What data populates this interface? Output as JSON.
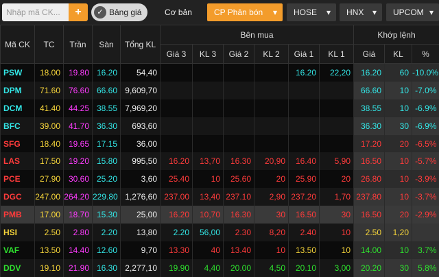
{
  "toolbar": {
    "search_placeholder": "Nhập mã CK...",
    "add_button": "+",
    "toggle": "Bảng giá",
    "basic": "Cơ bản",
    "group": "CP Phân bón",
    "exchanges": [
      "HOSE",
      "HNX",
      "UPCOM"
    ]
  },
  "table": {
    "header_top": [
      "Mã CK",
      "TC",
      "Trần",
      "Sàn",
      "Tổng KL"
    ],
    "group_buy": "Bên mua",
    "group_match": "Khớp lệnh",
    "sub_headers": [
      "Giá 3",
      "KL 3",
      "Giá 2",
      "KL 2",
      "Giá 1",
      "KL 1",
      "Giá",
      "KL",
      "%"
    ],
    "rows": [
      [
        "PSW",
        "18.00",
        "19.80",
        "16.20",
        "54,40",
        null,
        null,
        null,
        null,
        "16.20",
        "22,20",
        "16.20",
        "60",
        "-10.0%"
      ],
      [
        "DPM",
        "71.60",
        "76.60",
        "66.60",
        "9,609,70",
        null,
        null,
        null,
        null,
        null,
        null,
        "66.60",
        "10",
        "-7.0%"
      ],
      [
        "DCM",
        "41.40",
        "44.25",
        "38.55",
        "7,969,20",
        null,
        null,
        null,
        null,
        null,
        null,
        "38.55",
        "10",
        "-6.9%"
      ],
      [
        "BFC",
        "39.00",
        "41.70",
        "36.30",
        "693,60",
        null,
        null,
        null,
        null,
        null,
        null,
        "36.30",
        "30",
        "-6.9%"
      ],
      [
        "SFG",
        "18.40",
        "19.65",
        "17.15",
        "36,00",
        null,
        null,
        null,
        null,
        null,
        null,
        "17.20",
        "20",
        "-6.5%"
      ],
      [
        "LAS",
        "17.50",
        "19.20",
        "15.80",
        "995,50",
        "16.20",
        "13,70",
        "16.30",
        "20,90",
        "16.40",
        "5,90",
        "16.50",
        "10",
        "-5.7%"
      ],
      [
        "PCE",
        "27.90",
        "30.60",
        "25.20",
        "3,60",
        "25.40",
        "10",
        "25.60",
        "20",
        "25.90",
        "20",
        "26.80",
        "10",
        "-3.9%"
      ],
      [
        "DGC",
        "247.00",
        "264.20",
        "229.80",
        "1,276,60",
        "237.00",
        "13,40",
        "237.10",
        "2,90",
        "237.20",
        "1,70",
        "237.80",
        "10",
        "-3.7%"
      ],
      [
        "PMB",
        "17.00",
        "18.70",
        "15.30",
        "25,00",
        "16.20",
        "10,70",
        "16.30",
        "30",
        "16.50",
        "30",
        "16.50",
        "20",
        "-2.9%"
      ],
      [
        "HSI",
        "2.50",
        "2.80",
        "2.20",
        "13,80",
        "2.20",
        "56,00",
        "2.30",
        "8,20",
        "2.40",
        "10",
        "2.50",
        "1,20",
        null
      ],
      [
        "VAF",
        "13.50",
        "14.40",
        "12.60",
        "9,70",
        "13.30",
        "40",
        "13.40",
        "10",
        "13.50",
        "10",
        "14.00",
        "10",
        "3.7%"
      ],
      [
        "DDV",
        "19.10",
        "21.90",
        "16.30",
        "2,277,10",
        "19.90",
        "4,40",
        "20.00",
        "4,50",
        "20.10",
        "3,00",
        "20.20",
        "30",
        "5.8%"
      ]
    ]
  }
}
